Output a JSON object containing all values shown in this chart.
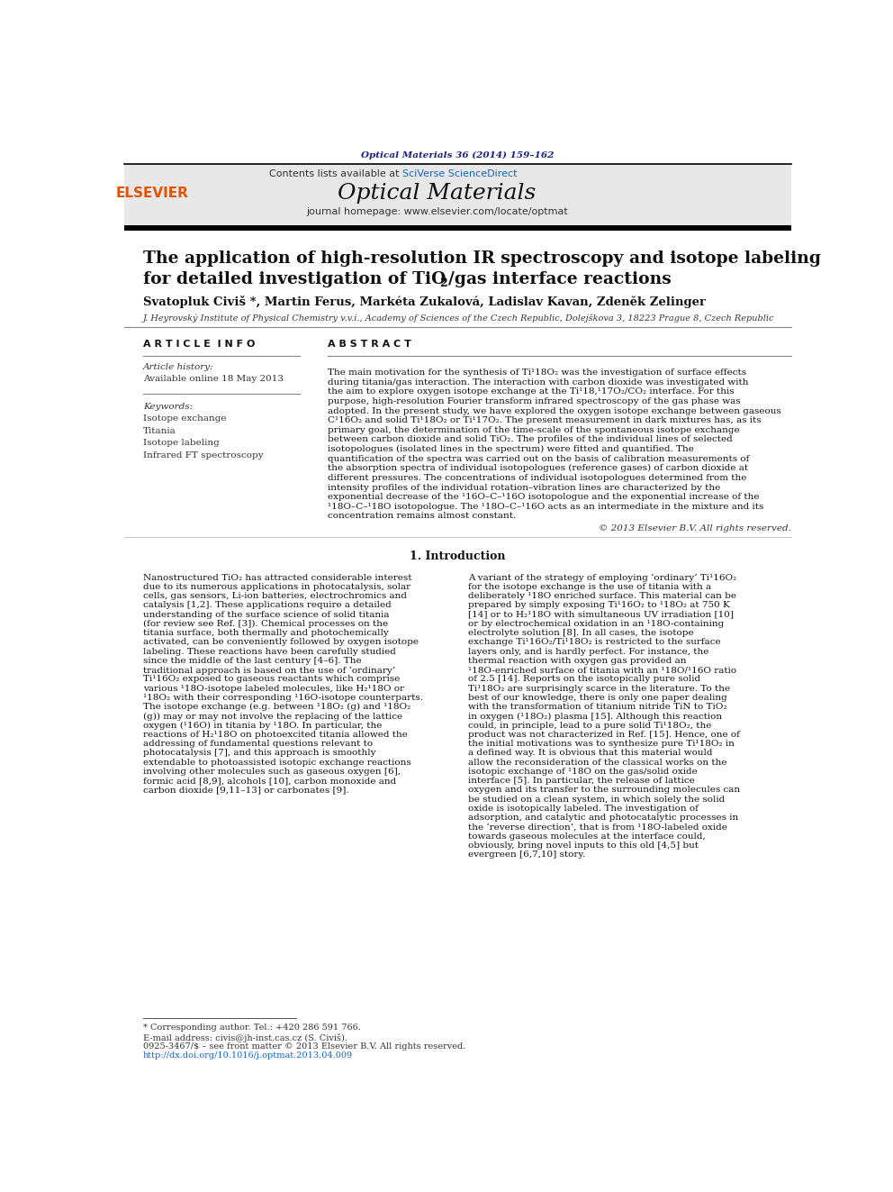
{
  "page_width": 9.92,
  "page_height": 13.23,
  "bg_color": "#ffffff",
  "journal_ref": "Optical Materials 36 (2014) 159–162",
  "journal_ref_color": "#1a237e",
  "header_bg": "#e8e8e8",
  "contents_text": "Contents lists available at ",
  "sciverse_text": "SciVerse ScienceDirect",
  "sciverse_color": "#1565c0",
  "journal_title": "Optical Materials",
  "journal_homepage": "journal homepage: www.elsevier.com/locate/optmat",
  "elsevier_color": "#e65100",
  "article_title_line1": "The application of high-resolution IR spectroscopy and isotope labeling",
  "article_title_line2": "for detailed investigation of TiO",
  "article_title_line2b": "2",
  "article_title_line2c": "/gas interface reactions",
  "authors": "Svatopluk Civiš *, Martin Ferus, Markéta Zukalová, Ladislav Kavan, Zdeněk Zelinger",
  "affiliation": "J. Heyrovský Institute of Physical Chemistry v.v.i., Academy of Sciences of the Czech Republic, Dolejškova 3, 18223 Prague 8, Czech Republic",
  "article_info_title": "A R T I C L E  I N F O",
  "abstract_title": "A B S T R A C T",
  "article_history_label": "Article history:",
  "article_history_date": "Available online 18 May 2013",
  "keywords_label": "Keywords:",
  "keywords": [
    "Isotope exchange",
    "Titania",
    "Isotope labeling",
    "Infrared FT spectroscopy"
  ],
  "abstract_text": "The main motivation for the synthesis of Ti¹18O₂ was the investigation of surface effects during titania/gas interaction. The interaction with carbon dioxide was investigated with the aim to explore oxygen isotope exchange at the Ti¹18,¹17O₂/CO₂ interface. For this purpose, high-resolution Fourier transform infrared spectroscopy of the gas phase was adopted. In the present study, we have explored the oxygen isotope exchange between gaseous C¹16O₂ and solid Ti¹18O₂ or Ti¹17O₂. The present measurement in dark mixtures has, as its primary goal, the determination of the time-scale of the spontaneous isotope exchange between carbon dioxide and solid TiO₂. The profiles of the individual lines of selected isotopologues (isolated lines in the spectrum) were fitted and quantified. The quantification of the spectra was carried out on the basis of calibration measurements of the absorption spectra of individual isotopologues (reference gases) of carbon dioxide at different pressures. The concentrations of individual isotopologues determined from the intensity profiles of the individual rotation–vibration lines are characterized by the exponential decrease of the ¹16O–C–¹16O isotopologue and the exponential increase of the ¹18O–C–¹18O isotopologue. The ¹18O–C–¹16O acts as an intermediate in the mixture and its concentration remains almost constant.",
  "copyright_text": "© 2013 Elsevier B.V. All rights reserved.",
  "intro_title": "1. Introduction",
  "intro_col1": "Nanostructured TiO₂ has attracted considerable interest due to its numerous applications in photocatalysis, solar cells, gas sensors, Li-ion batteries, electrochromics and catalysis [1,2]. These applications require a detailed understanding of the surface science of solid titania (for review see Ref. [3]). Chemical processes on the titania surface, both thermally and photochemically activated, can be conveniently followed by oxygen isotope labeling. These reactions have been carefully studied since the middle of the last century [4–6]. The traditional approach is based on the use of ‘ordinary’ Ti¹16O₂ exposed to gaseous reactants which comprise various ¹18O-isotope labeled molecules, like H₂¹18O or ¹18O₂ with their corresponding ¹16O-isotope counterparts. The isotope exchange (e.g. between ¹18O₂ (g) and ¹18O₂ (g)) may or may not involve the replacing of the lattice oxygen (¹16O) in titania by ¹18O. In particular, the reactions of H₂¹18O on photoexcited titania allowed the addressing of fundamental questions relevant to photocatalysis [7], and this approach is smoothly extendable to photoassisted isotopic exchange reactions involving other molecules such as gaseous oxygen [6], formic acid [8,9], alcohols [10], carbon monoxide and carbon dioxide [9,11–13] or carbonates [9].",
  "intro_col2": "A variant of the strategy of employing ‘ordinary’ Ti¹16O₂ for the isotope exchange is the use of titania with a deliberately ¹18O enriched surface. This material can be prepared by simply exposing Ti¹16O₂ to ¹18O₂ at 750 K [14] or to H₂¹18O with simultaneous UV irradiation [10] or by electrochemical oxidation in an ¹18O-containing electrolyte solution [8]. In all cases, the isotope exchange Ti¹16O₂/Ti¹18O₂ is restricted to the surface layers only, and is hardly perfect. For instance, the thermal reaction with oxygen gas provided an ¹18O-enriched surface of titania with an ¹18O/¹16O ratio of 2.5 [14]. Reports on the isotopically pure solid Ti¹18O₂ are surprisingly scarce in the literature. To the best of our knowledge, there is only one paper dealing with the transformation of titanium nitride TiN to TiO₂ in oxygen (¹18O₂) plasma [15]. Although this reaction could, in principle, lead to a pure solid Ti¹18O₂, the product was not characterized in Ref. [15]. Hence, one of the initial motivations was to synthesize pure Ti¹18O₂ in a defined way. It is obvious that this material would allow the reconsideration of the classical works on the isotopic exchange of ¹18O on the gas/solid oxide interface [5]. In particular, the release of lattice oxygen and its transfer to the surrounding molecules can be studied on a clean system, in which solely the solid oxide is isotopically labeled. The investigation of adsorption, and catalytic and photocatalytic processes in the ‘reverse direction’, that is from ¹18O-labeled oxide towards gaseous molecules at the interface could, obviously, bring novel inputs to this old [4,5] but evergreen [6,7,10] story.",
  "footnote_asterisk": "* Corresponding author. Tel.: +420 286 591 766.",
  "footnote_email": "E-mail address: civis@jh-inst.cas.cz (S. Civiš).",
  "issn_text": "0925-3467/$ – see front matter © 2013 Elsevier B.V. All rights reserved.",
  "doi_text": "http://dx.doi.org/10.1016/j.optmat.2013.04.009",
  "doi_color": "#1565c0"
}
